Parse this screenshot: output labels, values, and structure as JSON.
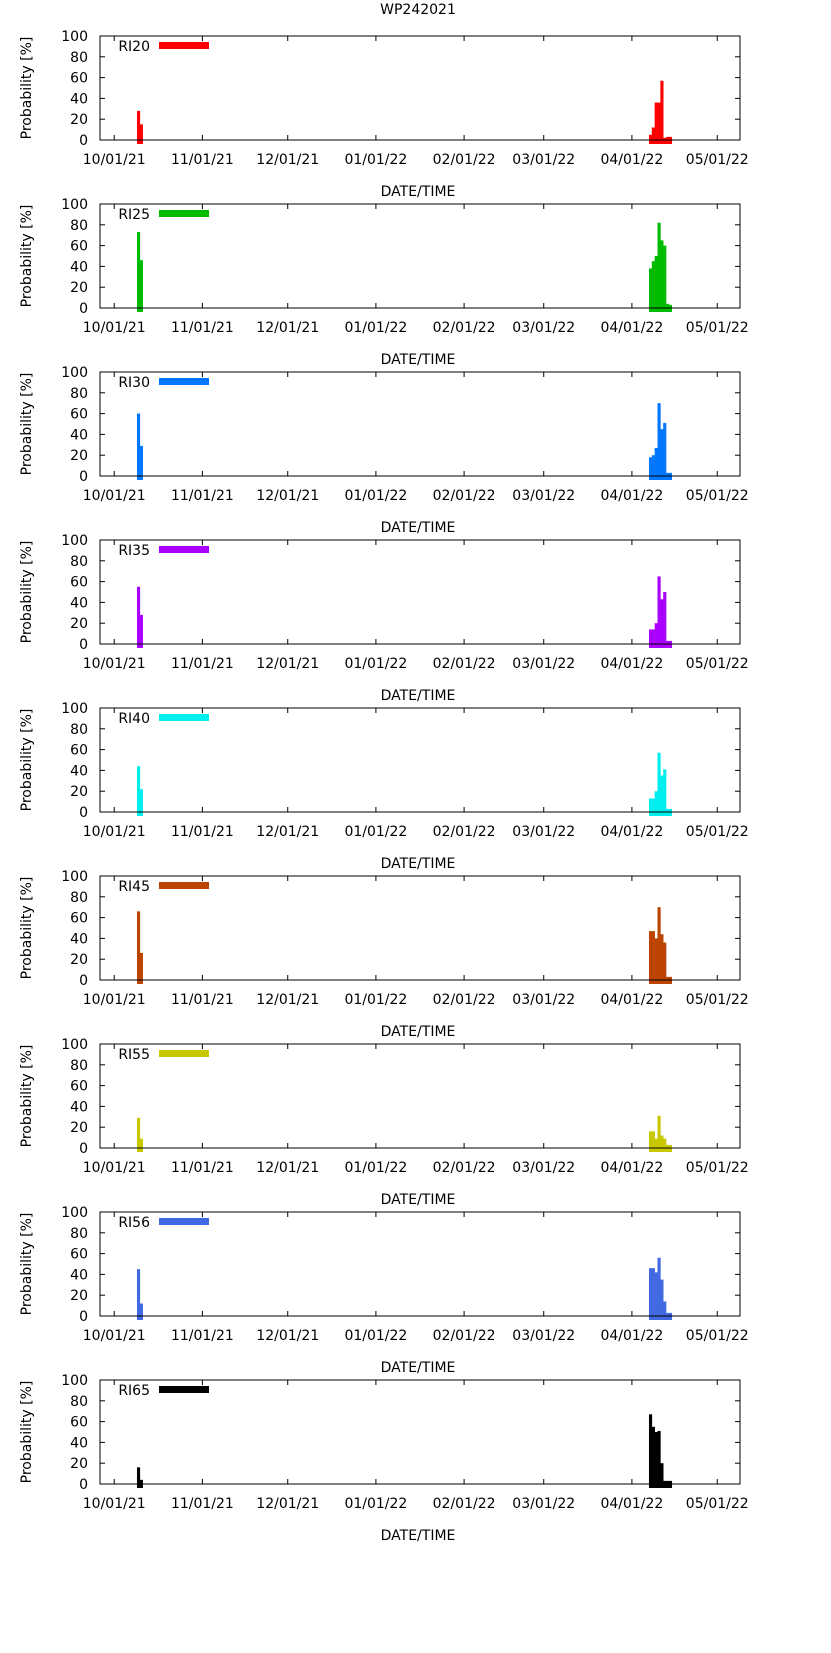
{
  "chart_data": {
    "title": "WP242021",
    "type": "bar",
    "xlabel": "DATE/TIME",
    "ylabel": "Probability [%]",
    "ylim": [
      0,
      100
    ],
    "yticks": [
      "0",
      "20",
      "40",
      "60",
      "80",
      "100"
    ],
    "xticks": [
      "10/01/21",
      "11/01/21",
      "12/01/21",
      "01/01/22",
      "02/01/22",
      "03/01/22",
      "04/01/22",
      "05/01/22"
    ],
    "xrange_days": [
      -5,
      220
    ],
    "grid": false,
    "legend_position": "top-left",
    "panels": [
      {
        "label": "RI20",
        "color": "#ff0000",
        "bars": [
          [
            8,
            9,
            28
          ],
          [
            9,
            10,
            15
          ],
          [
            188,
            189,
            5
          ],
          [
            189,
            190,
            12
          ],
          [
            190,
            191,
            36
          ],
          [
            191,
            192,
            36
          ],
          [
            192,
            193,
            57
          ],
          [
            193,
            194,
            2
          ],
          [
            194,
            195,
            3
          ],
          [
            195,
            196,
            3
          ]
        ]
      },
      {
        "label": "RI25",
        "color": "#00bb00",
        "bars": [
          [
            8,
            9,
            73
          ],
          [
            9,
            10,
            46
          ],
          [
            188,
            189,
            38
          ],
          [
            189,
            190,
            45
          ],
          [
            190,
            191,
            50
          ],
          [
            191,
            192,
            82
          ],
          [
            192,
            193,
            65
          ],
          [
            193,
            194,
            60
          ],
          [
            194,
            195,
            4
          ],
          [
            195,
            196,
            3
          ]
        ]
      },
      {
        "label": "RI30",
        "color": "#0077ff",
        "bars": [
          [
            8,
            9,
            60
          ],
          [
            9,
            10,
            29
          ],
          [
            188,
            189,
            18
          ],
          [
            189,
            190,
            20
          ],
          [
            190,
            191,
            27
          ],
          [
            191,
            192,
            70
          ],
          [
            192,
            193,
            45
          ],
          [
            193,
            194,
            51
          ],
          [
            194,
            195,
            3
          ],
          [
            195,
            196,
            3
          ]
        ]
      },
      {
        "label": "RI35",
        "color": "#aa00ff",
        "bars": [
          [
            8,
            9,
            55
          ],
          [
            9,
            10,
            28
          ],
          [
            188,
            189,
            14
          ],
          [
            189,
            190,
            14
          ],
          [
            190,
            191,
            20
          ],
          [
            191,
            192,
            65
          ],
          [
            192,
            193,
            43
          ],
          [
            193,
            194,
            50
          ],
          [
            194,
            195,
            3
          ],
          [
            195,
            196,
            3
          ]
        ]
      },
      {
        "label": "RI40",
        "color": "#00eeee",
        "bars": [
          [
            8,
            9,
            44
          ],
          [
            9,
            10,
            22
          ],
          [
            188,
            189,
            13
          ],
          [
            189,
            190,
            13
          ],
          [
            190,
            191,
            20
          ],
          [
            191,
            192,
            57
          ],
          [
            192,
            193,
            35
          ],
          [
            193,
            194,
            41
          ],
          [
            194,
            195,
            3
          ],
          [
            195,
            196,
            3
          ]
        ]
      },
      {
        "label": "RI45",
        "color": "#bb4400",
        "bars": [
          [
            8,
            9,
            66
          ],
          [
            9,
            10,
            26
          ],
          [
            188,
            189,
            47
          ],
          [
            189,
            190,
            47
          ],
          [
            190,
            191,
            40
          ],
          [
            191,
            192,
            70
          ],
          [
            192,
            193,
            44
          ],
          [
            193,
            194,
            36
          ],
          [
            194,
            195,
            3
          ],
          [
            195,
            196,
            3
          ]
        ]
      },
      {
        "label": "RI55",
        "color": "#c8c800",
        "bars": [
          [
            8,
            9,
            29
          ],
          [
            9,
            10,
            9
          ],
          [
            188,
            189,
            16
          ],
          [
            189,
            190,
            16
          ],
          [
            190,
            191,
            9
          ],
          [
            191,
            192,
            31
          ],
          [
            192,
            193,
            12
          ],
          [
            193,
            194,
            9
          ],
          [
            194,
            195,
            3
          ],
          [
            195,
            196,
            3
          ]
        ]
      },
      {
        "label": "RI56",
        "color": "#4169e1",
        "bars": [
          [
            8,
            9,
            45
          ],
          [
            9,
            10,
            12
          ],
          [
            188,
            189,
            46
          ],
          [
            189,
            190,
            46
          ],
          [
            190,
            191,
            42
          ],
          [
            191,
            192,
            56
          ],
          [
            192,
            193,
            35
          ],
          [
            193,
            194,
            14
          ],
          [
            194,
            195,
            3
          ],
          [
            195,
            196,
            3
          ]
        ]
      },
      {
        "label": "RI65",
        "color": "#000000",
        "bars": [
          [
            8,
            9,
            16
          ],
          [
            9,
            10,
            4
          ],
          [
            188,
            189,
            67
          ],
          [
            189,
            190,
            55
          ],
          [
            190,
            191,
            50
          ],
          [
            191,
            192,
            51
          ],
          [
            192,
            193,
            20
          ],
          [
            193,
            194,
            3
          ],
          [
            194,
            195,
            3
          ],
          [
            195,
            196,
            3
          ]
        ]
      }
    ]
  }
}
